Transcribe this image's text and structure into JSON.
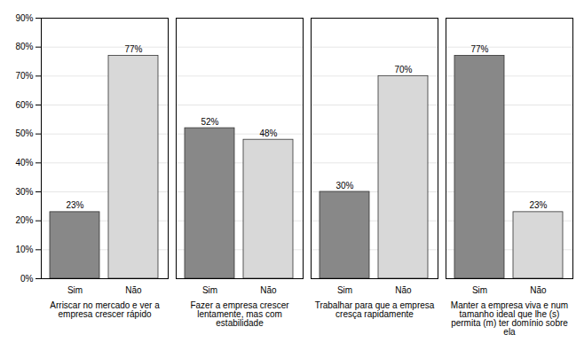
{
  "chart_data": {
    "type": "bar",
    "categories": [
      "Arriscar no mercado e ver a\nempresa crescer rápido",
      "Fazer a empresa crescer\nlentamente, mas com\nestabilidade",
      "Trabalhar para que a empresa\ncresça rapidamente",
      "Manter a empresa viva e num\ntamanho ideal que lhe (s)\npermita (m) ter domínio sobre\nela"
    ],
    "series": [
      {
        "name": "Sim",
        "color": "#888888",
        "values": [
          23,
          52,
          30,
          77
        ],
        "value_labels": [
          "23%",
          "52%",
          "30%",
          "77%"
        ]
      },
      {
        "name": "Não",
        "color": "#d8d8d8",
        "values": [
          77,
          48,
          70,
          23
        ],
        "value_labels": [
          "77%",
          "48%",
          "70%",
          "23%"
        ]
      }
    ],
    "ylim": [
      0,
      90
    ],
    "yticks": [
      {
        "value": 0,
        "label": "0%"
      },
      {
        "value": 10,
        "label": "10%"
      },
      {
        "value": 20,
        "label": "20%"
      },
      {
        "value": 30,
        "label": "30%"
      },
      {
        "value": 40,
        "label": "40%"
      },
      {
        "value": 50,
        "label": "50%"
      },
      {
        "value": 60,
        "label": "60%"
      },
      {
        "value": 70,
        "label": "70%"
      },
      {
        "value": 80,
        "label": "80%"
      },
      {
        "value": 90,
        "label": "90%"
      }
    ],
    "grid": true,
    "data_labels": true
  }
}
